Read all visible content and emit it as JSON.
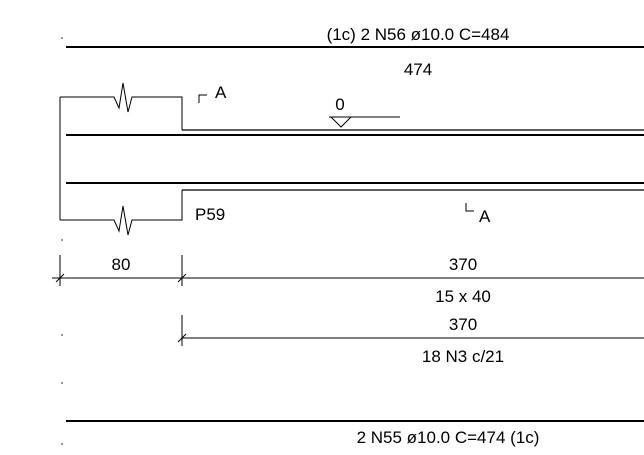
{
  "top_bar": {
    "label": "(1c) 2 N56 ø10.0 C=484",
    "length": "474"
  },
  "section_marks": {
    "top": "A",
    "bottom": "A"
  },
  "level": {
    "value": "0"
  },
  "pillar": {
    "label": "P59"
  },
  "dimensions": {
    "support_width": "80",
    "span_length": "370",
    "section": "15 x 40",
    "stirrup_length": "370",
    "stirrups": "18 N3 c/21"
  },
  "bottom_bar": {
    "label": "2 N55 ø10.0 C=474 (1c)"
  }
}
